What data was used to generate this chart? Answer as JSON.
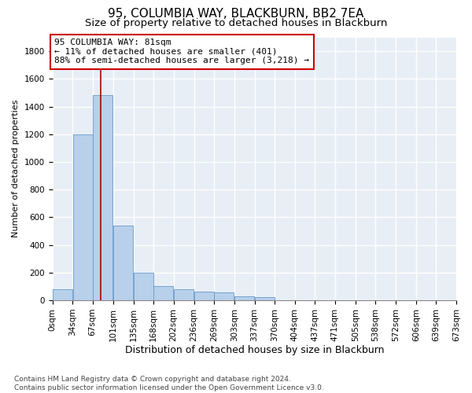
{
  "title": "95, COLUMBIA WAY, BLACKBURN, BB2 7EA",
  "subtitle": "Size of property relative to detached houses in Blackburn",
  "xlabel": "Distribution of detached houses by size in Blackburn",
  "ylabel": "Number of detached properties",
  "bar_color": "#b8d0ea",
  "bar_edge_color": "#6699cc",
  "background_color": "#e8eef5",
  "grid_color": "#ffffff",
  "annotation_box_color": "#cc0000",
  "annotation_line1": "95 COLUMBIA WAY: 81sqm",
  "annotation_line2": "← 11% of detached houses are smaller (401)",
  "annotation_line3": "88% of semi-detached houses are larger (3,218) →",
  "vline_x": 81,
  "vline_color": "#aa0000",
  "categories": [
    "0sqm",
    "34sqm",
    "67sqm",
    "101sqm",
    "135sqm",
    "168sqm",
    "202sqm",
    "236sqm",
    "269sqm",
    "303sqm",
    "337sqm",
    "370sqm",
    "404sqm",
    "437sqm",
    "471sqm",
    "505sqm",
    "538sqm",
    "572sqm",
    "606sqm",
    "639sqm",
    "673sqm"
  ],
  "bin_edges": [
    0,
    34,
    67,
    101,
    135,
    168,
    202,
    236,
    269,
    303,
    337,
    370,
    404,
    437,
    471,
    505,
    538,
    572,
    606,
    639,
    673
  ],
  "values": [
    80,
    1200,
    1480,
    540,
    200,
    105,
    80,
    65,
    55,
    30,
    25,
    0,
    0,
    0,
    0,
    0,
    0,
    0,
    0,
    0
  ],
  "ylim": [
    0,
    1900
  ],
  "yticks": [
    0,
    200,
    400,
    600,
    800,
    1000,
    1200,
    1400,
    1600,
    1800
  ],
  "footer": "Contains HM Land Registry data © Crown copyright and database right 2024.\nContains public sector information licensed under the Open Government Licence v3.0.",
  "title_fontsize": 11,
  "subtitle_fontsize": 9.5,
  "xlabel_fontsize": 9,
  "ylabel_fontsize": 8,
  "tick_fontsize": 7.5,
  "annotation_fontsize": 8,
  "footer_fontsize": 6.5
}
